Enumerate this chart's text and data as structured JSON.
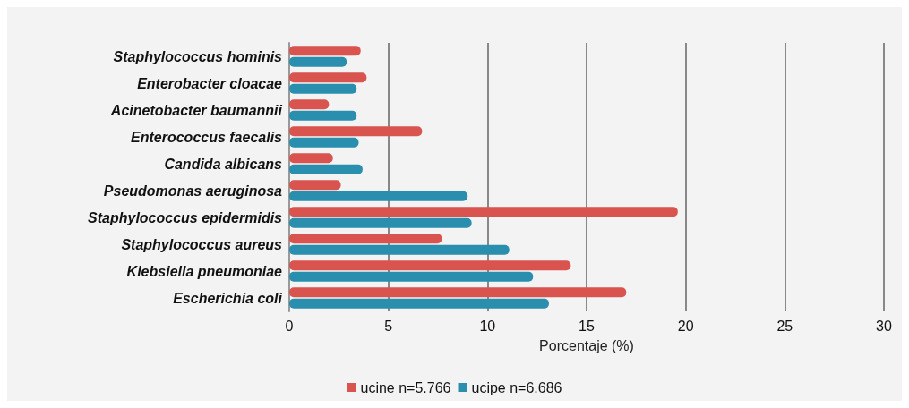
{
  "chart_data": {
    "type": "bar",
    "orientation": "horizontal",
    "xlabel": "Porcentaje (%)",
    "categories": [
      "Staphylococcus hominis",
      "Enterobacter cloacae",
      "Acinetobacter baumannii",
      "Enterococcus faecalis",
      "Candida albicans",
      "Pseudomonas aeruginosa",
      "Staphylococcus epidermidis",
      "Staphylococcus aureus",
      "Klebsiella pneumoniae",
      "Escherichia coli"
    ],
    "series": [
      {
        "name": "ucine n=5.766",
        "color": "#d9534f",
        "values": [
          3.6,
          3.9,
          2.0,
          6.7,
          2.2,
          2.6,
          19.6,
          7.7,
          14.2,
          17.0
        ]
      },
      {
        "name": "ucipe n=6.686",
        "color": "#2a8fae",
        "values": [
          2.9,
          3.4,
          3.4,
          3.5,
          3.7,
          9.0,
          9.2,
          11.1,
          12.3,
          13.1
        ]
      }
    ],
    "xlim": [
      0,
      30
    ],
    "xticks": [
      0,
      5,
      10,
      15,
      20,
      25,
      30
    ],
    "grid": "x",
    "legend": "bottom"
  }
}
